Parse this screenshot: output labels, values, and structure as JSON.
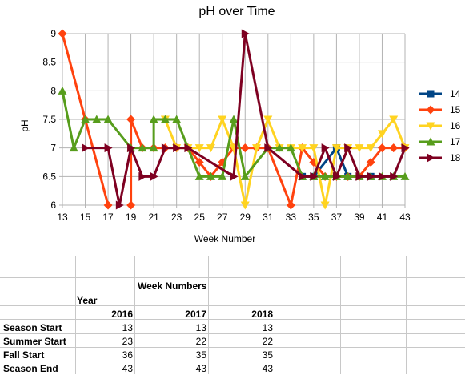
{
  "chart_data": {
    "type": "line",
    "title": "pH over Time",
    "xlabel": "Week Number",
    "ylabel": "pH",
    "xlim": [
      13,
      43
    ],
    "ylim": [
      6,
      9
    ],
    "x_ticks": [
      "13",
      "15",
      "17",
      "19",
      "21",
      "23",
      "25",
      "27",
      "29",
      "31",
      "33",
      "35",
      "37",
      "39",
      "41",
      "43"
    ],
    "y_ticks": [
      "6",
      "6.5",
      "7",
      "7.5",
      "8",
      "8.5",
      "9"
    ],
    "grid": true,
    "legend_position": "right",
    "series": [
      {
        "name": "14",
        "color": "#004586",
        "marker": "square",
        "points": [
          [
            34,
            6.5
          ],
          [
            35,
            6.5
          ],
          [
            37,
            7
          ],
          [
            38,
            6.5
          ],
          [
            39,
            6.5
          ],
          [
            40,
            6.5
          ]
        ]
      },
      {
        "name": "15",
        "color": "#ff420e",
        "marker": "diamond",
        "points": [
          [
            13,
            9
          ],
          [
            15,
            7.5
          ],
          [
            17,
            6
          ],
          null,
          [
            19,
            6
          ],
          [
            19,
            7.5
          ],
          [
            20,
            7
          ],
          [
            21,
            7
          ],
          [
            22,
            7
          ],
          [
            23,
            7
          ],
          [
            24,
            7
          ],
          [
            25,
            6.75
          ],
          [
            26,
            6.5
          ],
          [
            27,
            6.75
          ],
          [
            28,
            7
          ],
          [
            29,
            7
          ],
          [
            30,
            7
          ],
          [
            31,
            7
          ],
          [
            33,
            6
          ],
          [
            34,
            7
          ],
          [
            35,
            6.75
          ],
          [
            36,
            6.5
          ],
          [
            37,
            6.5
          ],
          [
            38,
            6.5
          ],
          [
            39,
            6.5
          ],
          [
            40,
            6.75
          ],
          [
            41,
            7
          ],
          [
            42,
            7
          ],
          [
            43,
            7
          ]
        ]
      },
      {
        "name": "16",
        "color": "#ffd320",
        "marker": "triangle-down",
        "points": [
          [
            22,
            7.5
          ],
          [
            23,
            7
          ],
          [
            24,
            7
          ],
          [
            25,
            7
          ],
          [
            26,
            7
          ],
          [
            27,
            7.5
          ],
          [
            28,
            7
          ],
          [
            29,
            6
          ],
          [
            30,
            7
          ],
          [
            31,
            7.5
          ],
          [
            32,
            7
          ],
          [
            33,
            7
          ],
          [
            34,
            7
          ],
          [
            35,
            7
          ],
          [
            36,
            6
          ],
          [
            37,
            7
          ],
          [
            38,
            7
          ],
          [
            39,
            7
          ],
          [
            40,
            7
          ],
          [
            41,
            7.25
          ],
          [
            42,
            7.5
          ],
          [
            43,
            7
          ]
        ]
      },
      {
        "name": "17",
        "color": "#579d1c",
        "marker": "triangle-up",
        "points": [
          [
            13,
            8
          ],
          [
            14,
            7
          ],
          [
            15,
            7.5
          ],
          [
            16,
            7.5
          ],
          [
            17,
            7.5
          ],
          [
            19,
            7
          ],
          [
            20,
            7
          ],
          [
            21,
            7
          ],
          [
            21,
            7.5
          ],
          [
            22,
            7.5
          ],
          [
            23,
            7.5
          ],
          [
            25,
            6.5
          ],
          [
            26,
            6.5
          ],
          [
            27,
            6.5
          ],
          [
            28,
            7.5
          ],
          [
            29,
            6.5
          ],
          [
            31,
            7
          ],
          [
            32,
            7
          ],
          [
            33,
            7
          ],
          [
            34,
            6.5
          ],
          [
            35,
            6.5
          ],
          [
            36,
            6.5
          ],
          [
            37,
            6.5
          ],
          [
            38,
            6.5
          ],
          [
            39,
            6.5
          ],
          [
            40,
            6.5
          ],
          [
            41,
            6.5
          ],
          [
            42,
            6.5
          ],
          [
            43,
            6.5
          ]
        ]
      },
      {
        "name": "18",
        "color": "#7e0021",
        "marker": "triangle-right",
        "points": [
          [
            15,
            7
          ],
          [
            17,
            7
          ],
          [
            18,
            6
          ],
          [
            19,
            7
          ],
          [
            20,
            6.5
          ],
          [
            21,
            6.5
          ],
          [
            22,
            7
          ],
          [
            23,
            7
          ],
          [
            24,
            7
          ],
          [
            28,
            6.5
          ],
          [
            29,
            9
          ],
          [
            31,
            7
          ],
          [
            34,
            6.5
          ],
          [
            35,
            6.5
          ],
          [
            36,
            7
          ],
          [
            37,
            6.5
          ],
          [
            38,
            7
          ],
          [
            39,
            6.5
          ],
          [
            40,
            6.5
          ],
          [
            41,
            6.5
          ],
          [
            42,
            6.5
          ],
          [
            43,
            7
          ]
        ]
      }
    ]
  },
  "table": {
    "header_title": "Week Numbers",
    "year_label": "Year",
    "years": [
      "2016",
      "2017",
      "2018"
    ],
    "rows": [
      {
        "label": "Season Start",
        "values": [
          "13",
          "13",
          "13"
        ]
      },
      {
        "label": "Summer Start",
        "values": [
          "23",
          "22",
          "22"
        ]
      },
      {
        "label": "Fall Start",
        "values": [
          "36",
          "35",
          "35"
        ]
      },
      {
        "label": "Season End",
        "values": [
          "43",
          "43",
          "43"
        ]
      }
    ]
  }
}
